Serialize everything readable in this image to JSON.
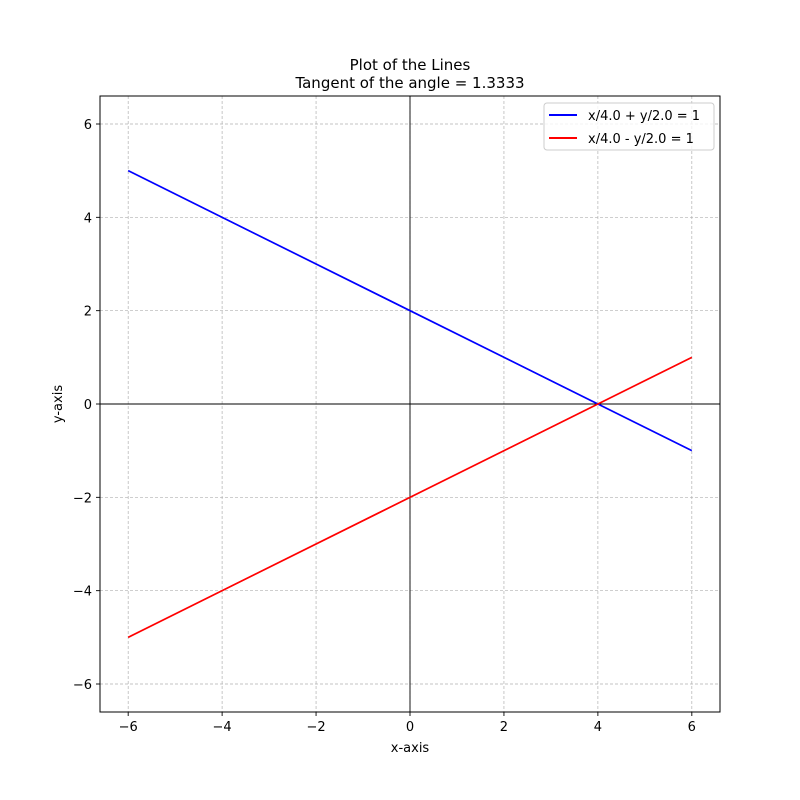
{
  "chart_data": {
    "type": "line",
    "title": "Plot of the Lines",
    "subtitle": "Tangent of the angle = 1.3333",
    "xlabel": "x-axis",
    "ylabel": "y-axis",
    "xlim": [
      -6.6,
      6.6
    ],
    "ylim": [
      -6.6,
      6.6
    ],
    "xticks": [
      -6,
      -4,
      -2,
      0,
      2,
      4,
      6
    ],
    "yticks": [
      -6,
      -4,
      -2,
      0,
      2,
      4,
      6
    ],
    "xtick_labels": [
      "−6",
      "−4",
      "−2",
      "0",
      "2",
      "4",
      "6"
    ],
    "ytick_labels": [
      "−6",
      "−4",
      "−2",
      "0",
      "2",
      "4",
      "6"
    ],
    "grid": true,
    "zero_axes": true,
    "legend_position": "top-right",
    "series": [
      {
        "name": "x/4.0 + y/2.0 = 1",
        "color": "#0000ff",
        "x": [
          -6,
          6
        ],
        "y": [
          5,
          -1
        ]
      },
      {
        "name": "x/4.0 - y/2.0 = 1",
        "color": "#ff0000",
        "x": [
          -6,
          6
        ],
        "y": [
          -5,
          1
        ]
      }
    ]
  }
}
